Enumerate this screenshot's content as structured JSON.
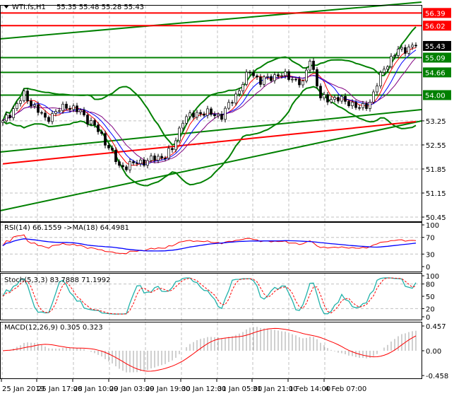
{
  "header": {
    "symbol": "WTI.fs,H1",
    "ohlc": "55.35 55.48 55.28 55.43"
  },
  "chart_data": [
    {
      "type": "candlestick",
      "title": "WTI.fs,H1",
      "ylim": [
        50.45,
        56.6
      ],
      "price_ticks": [
        "53.25",
        "52.55",
        "51.85",
        "51.15",
        "50.45"
      ],
      "current_price": "55.43",
      "levels": [
        {
          "value": 56.39,
          "label": "56.39",
          "color": "#ff0000"
        },
        {
          "value": 56.02,
          "label": "56.02",
          "color": "#ff0000"
        },
        {
          "value": 55.09,
          "label": "55.09",
          "color": "#008000"
        },
        {
          "value": 54.66,
          "label": "54.66",
          "color": "#008000"
        },
        {
          "value": 54.0,
          "label": "54.00",
          "color": "#008000"
        }
      ],
      "close_keypoints": [
        [
          0,
          53.2
        ],
        [
          6,
          54.0
        ],
        [
          12,
          53.3
        ],
        [
          18,
          53.7
        ],
        [
          22,
          53.5
        ],
        [
          26,
          53.1
        ],
        [
          30,
          52.5
        ],
        [
          33,
          51.9
        ],
        [
          37,
          52.0
        ],
        [
          45,
          52.2
        ],
        [
          48,
          52.4
        ],
        [
          51,
          53.3
        ],
        [
          56,
          53.5
        ],
        [
          62,
          53.4
        ],
        [
          66,
          54.0
        ],
        [
          70,
          54.7
        ],
        [
          73,
          54.4
        ],
        [
          78,
          54.6
        ],
        [
          82,
          54.5
        ],
        [
          85,
          54.3
        ],
        [
          87,
          55.1
        ],
        [
          90,
          53.9
        ],
        [
          94,
          53.9
        ],
        [
          98,
          53.8
        ],
        [
          101,
          53.6
        ],
        [
          104,
          53.8
        ],
        [
          108,
          54.8
        ],
        [
          112,
          55.3
        ],
        [
          117,
          55.43
        ]
      ],
      "x_ticks": [
        "25 Jan 2019",
        "25 Jan 17:00",
        "28 Jan 10:00",
        "29 Jan 03:00",
        "29 Jan 19:00",
        "30 Jan 12:00",
        "31 Jan 05:00",
        "31 Jan 21:00",
        "1 Feb 14:00",
        "4 Feb 07:00"
      ],
      "colors": {
        "bands": "#008000",
        "ma_slow": "#ff0000",
        "ma_fast1": "#ff0000",
        "ma_fast2": "#0000ff",
        "ma_fast3": "#800080"
      }
    },
    {
      "type": "line",
      "label": "RSI(14) 66.1559  ->MA(18) 64.4981",
      "ticks": [
        "100",
        "70",
        "30",
        "0"
      ],
      "colors": {
        "rsi": "#ff0000",
        "ma": "#0000ff"
      }
    },
    {
      "type": "line",
      "label": "Stoch(5,3,3) 83.7888 71.1992",
      "ticks": [
        "100",
        "80",
        "50",
        "20",
        "0"
      ],
      "colors": {
        "main": "#20b2aa",
        "signal": "#ff0000"
      }
    },
    {
      "type": "bar",
      "label": "MACD(12,26,9) 0.305 0.323",
      "ticks": [
        "0.457",
        "0.00",
        "-0.458"
      ],
      "colors": {
        "hist": "#a0a0a0",
        "signal": "#ff0000"
      }
    }
  ]
}
